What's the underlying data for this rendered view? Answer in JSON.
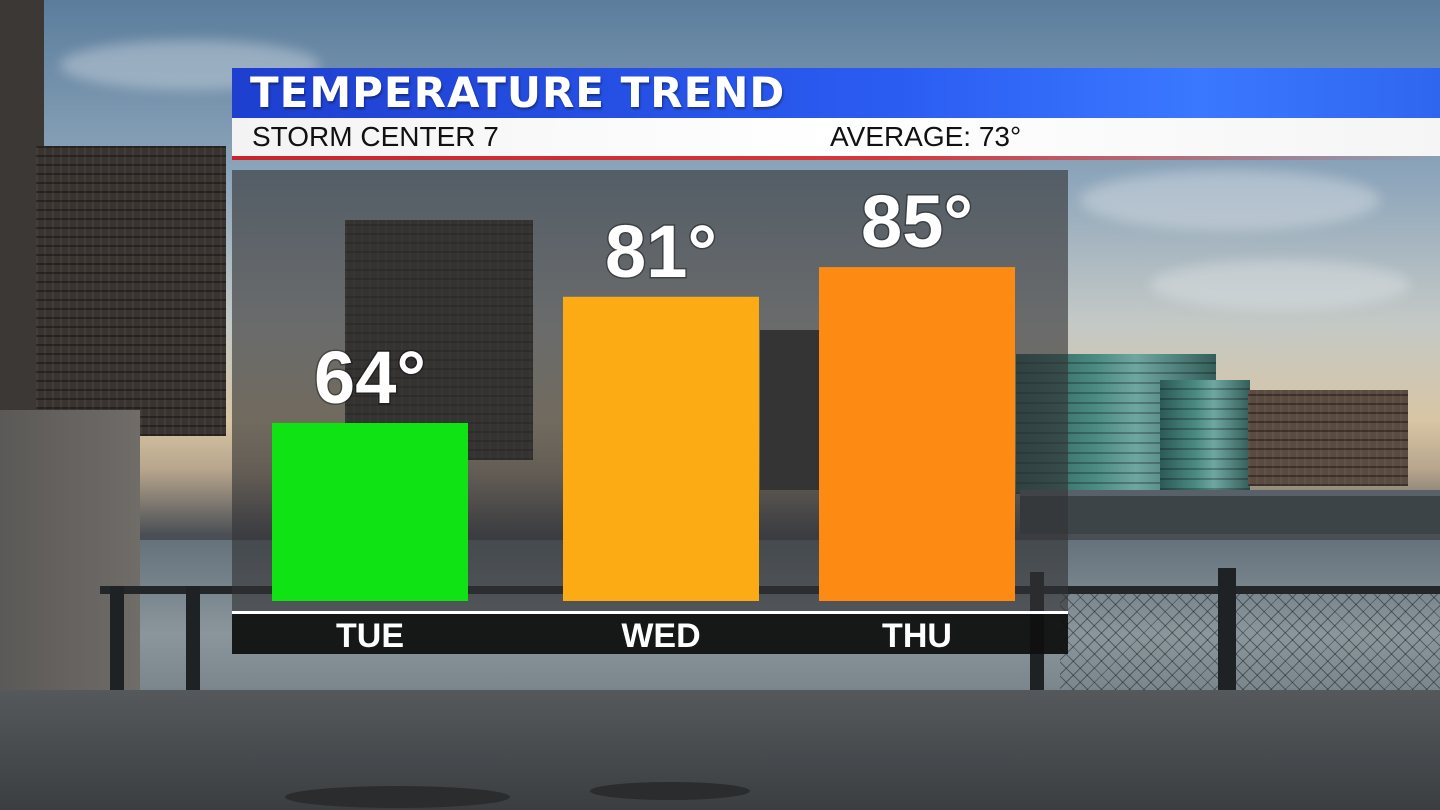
{
  "header": {
    "title": "TEMPERATURE TREND",
    "station": "STORM CENTER 7",
    "average": "AVERAGE: 73°"
  },
  "chart_data": {
    "type": "bar",
    "title": "",
    "categories": [
      "TUE",
      "WED",
      "THU"
    ],
    "values": [
      64,
      81,
      85
    ],
    "value_labels": [
      "64°",
      "81°",
      "85°"
    ],
    "bar_colors": [
      "#10e313",
      "#fdab14",
      "#fd8a12"
    ],
    "unit": "°",
    "ylim": [
      40,
      90
    ],
    "grid": false,
    "legend": "none",
    "xlabel": "",
    "ylabel": ""
  },
  "colors": {
    "title_bar": "#2b5cf2",
    "accent_line": "#c9242a",
    "panel": "#333334"
  }
}
